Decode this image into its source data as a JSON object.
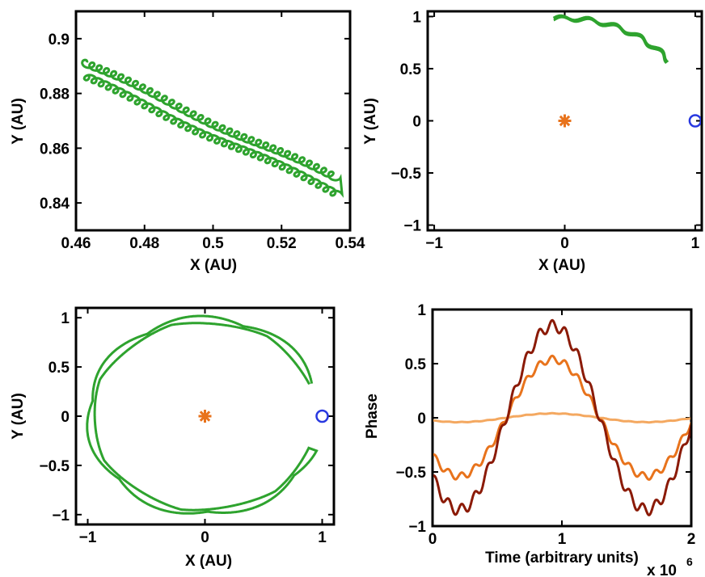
{
  "colors": {
    "orbit": "#2ea32e",
    "star": "#e8731c",
    "planet": "#2838e0",
    "phase_dark": "#8b1a06",
    "phase_mid": "#e8731c",
    "phase_light": "#f4a860"
  },
  "chart_data": [
    {
      "type": "line",
      "id": "orbit-zoom",
      "title": "",
      "xlabel": "X (AU)",
      "ylabel": "Y (AU)",
      "xlim": [
        0.46,
        0.54
      ],
      "ylim": [
        0.83,
        0.91
      ],
      "xticks": [
        0.46,
        0.48,
        0.5,
        0.52,
        0.54
      ],
      "yticks": [
        0.84,
        0.86,
        0.88,
        0.9
      ],
      "xtick_labels": [
        "0.46",
        "0.48",
        "0.5",
        "0.52",
        "0.54"
      ],
      "ytick_labels": [
        "0.84",
        "0.86",
        "0.88",
        "0.9"
      ],
      "series": [
        {
          "name": "trajectory",
          "color": "#2ea32e",
          "from": [
            0.462,
            0.8885
          ],
          "to": [
            0.536,
            0.846
          ],
          "description": "looping epicyclic band"
        }
      ]
    },
    {
      "type": "scatter",
      "id": "orbit-short",
      "title": "",
      "xlabel": "X (AU)",
      "ylabel": "Y (AU)",
      "xlim": [
        -1.05,
        1.05
      ],
      "ylim": [
        -1.05,
        1.05
      ],
      "xticks": [
        -1,
        0,
        1
      ],
      "yticks": [
        -1,
        -0.5,
        0,
        0.5,
        1
      ],
      "xtick_labels": [
        "−1",
        "0",
        "1"
      ],
      "ytick_labels": [
        "−1",
        "−0.5",
        "0",
        "0.5",
        "1"
      ],
      "series": [
        {
          "name": "trajectory",
          "color": "#2ea32e",
          "angle_range_deg": [
            36,
            95
          ]
        },
        {
          "name": "star",
          "marker": "asterisk",
          "x": 0,
          "y": 0,
          "color": "#e8731c"
        },
        {
          "name": "planet",
          "marker": "circle",
          "x": 1,
          "y": 0,
          "color": "#2838e0"
        }
      ]
    },
    {
      "type": "scatter",
      "id": "orbit-long",
      "title": "",
      "xlabel": "X (AU)",
      "ylabel": "Y (AU)",
      "xlim": [
        -1.1,
        1.1
      ],
      "ylim": [
        -1.1,
        1.1
      ],
      "xticks": [
        -1,
        0,
        1
      ],
      "yticks": [
        -1,
        -0.5,
        0,
        0.5,
        1
      ],
      "xtick_labels": [
        "−1",
        "0",
        "1"
      ],
      "ytick_labels": [
        "−1",
        "−0.5",
        "0",
        "0.5",
        "1"
      ],
      "series": [
        {
          "name": "trajectory",
          "color": "#2ea32e",
          "angle_range_deg": [
            20,
            340
          ]
        },
        {
          "name": "star",
          "marker": "asterisk",
          "x": 0,
          "y": 0,
          "color": "#e8731c"
        },
        {
          "name": "planet",
          "marker": "circle",
          "x": 1,
          "y": 0,
          "color": "#2838e0"
        }
      ]
    },
    {
      "type": "line",
      "id": "phase",
      "title": "",
      "xlabel": "Time (arbitrary units)",
      "ylabel": "Phase",
      "x_exponent_label": "x 10",
      "x_exponent_power": "6",
      "xlim": [
        0,
        2
      ],
      "ylim": [
        -1,
        1
      ],
      "xticks": [
        0,
        1,
        2
      ],
      "yticks": [
        -1,
        -0.5,
        0,
        0.5,
        1
      ],
      "xtick_labels": [
        "0",
        "1",
        "2"
      ],
      "ytick_labels": [
        "−1",
        "−0.5",
        "0",
        "0.5",
        "1"
      ],
      "series": [
        {
          "name": "phase-large",
          "color": "#8b1a06",
          "amplitude": 0.85,
          "period": 1.45,
          "peak_x": 0.93
        },
        {
          "name": "phase-medium",
          "color": "#e8731c",
          "amplitude": 0.54,
          "period": 1.45,
          "peak_x": 0.93
        },
        {
          "name": "phase-small",
          "color": "#f4a860",
          "amplitude": 0.04,
          "period": 1.45,
          "peak_x": 0.93
        }
      ]
    }
  ]
}
